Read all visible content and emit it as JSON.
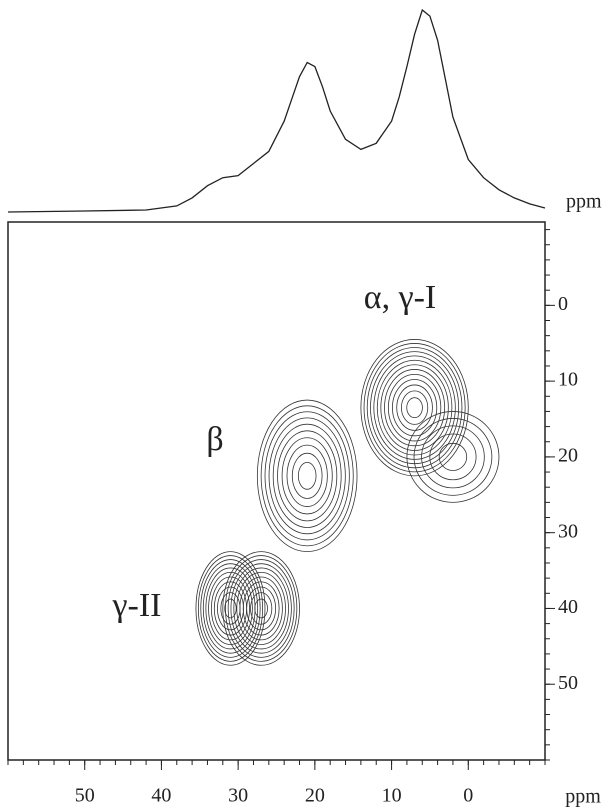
{
  "chart_data": [
    {
      "type": "line",
      "color": "#222",
      "x": [
        60,
        50,
        42,
        38,
        36,
        34,
        32,
        30,
        28,
        26,
        24,
        23,
        22,
        21,
        20,
        19,
        18,
        16,
        14,
        12,
        10,
        9,
        8,
        7,
        6,
        5,
        4,
        3,
        2,
        0,
        -2,
        -4,
        -6,
        -8,
        -10
      ],
      "values": [
        0,
        0.5,
        1,
        3,
        7,
        13,
        17,
        18,
        24,
        30,
        45,
        56,
        67,
        74,
        72,
        62,
        50,
        36,
        31,
        34,
        45,
        57,
        72,
        88,
        100,
        97,
        85,
        66,
        47,
        26,
        17,
        11,
        7,
        4,
        2
      ],
      "xlim": [
        60,
        -10
      ]
    },
    {
      "type": "contour",
      "color": "#333",
      "xlabel": "ppm",
      "ylabel": "ppm",
      "xlim": [
        60,
        -10
      ],
      "ylim": [
        -11,
        60
      ],
      "xticks": [
        50,
        40,
        30,
        20,
        10,
        0
      ],
      "yticks": [
        0,
        10,
        20,
        30,
        40,
        50
      ],
      "minor_tick_step": 2,
      "peaks": [
        {
          "x": 7,
          "y": 13.5,
          "rx": 7,
          "ry": 9,
          "levels": 13
        },
        {
          "x": 2,
          "y": 20,
          "rx": 6,
          "ry": 6,
          "levels": 5
        },
        {
          "x": 21,
          "y": 22.5,
          "rx": 6.5,
          "ry": 10,
          "levels": 10
        },
        {
          "x": 31,
          "y": 40,
          "rx": 4.5,
          "ry": 7.5,
          "levels": 11
        },
        {
          "x": 27,
          "y": 40,
          "rx": 5,
          "ry": 7.5,
          "levels": 11
        }
      ],
      "annotations": [
        "α, γ-I",
        "β",
        "γ-II"
      ]
    }
  ]
}
